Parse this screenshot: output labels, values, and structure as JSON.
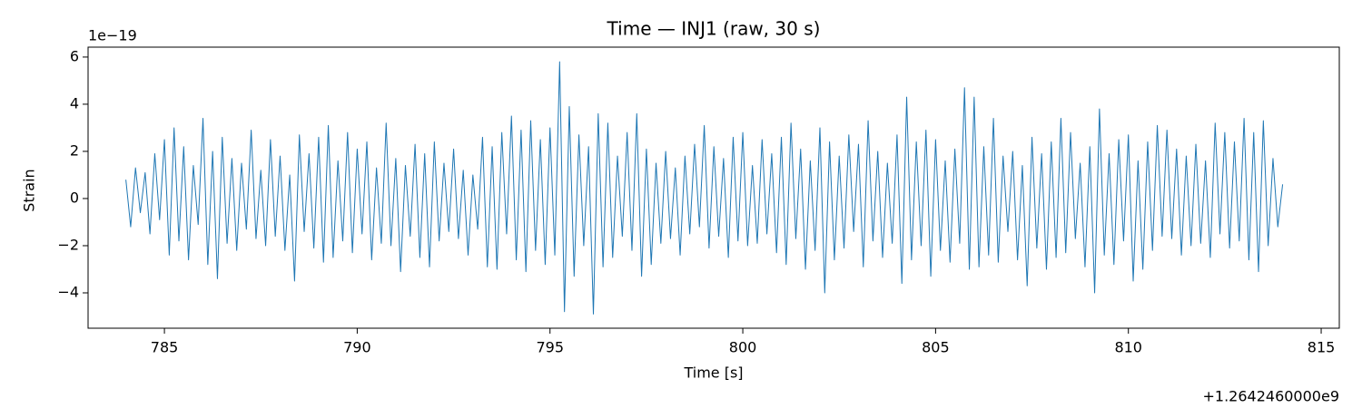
{
  "chart_data": {
    "type": "line",
    "title": "Time — INJ1 (raw, 30 s)",
    "xlabel": "Time [s]",
    "ylabel": "Strain",
    "y_offset_label": "1e−19",
    "x_offset_label": "+1.2642460000e9",
    "xlim": [
      783.02,
      815.47
    ],
    "ylim": [
      -5.5,
      6.42
    ],
    "xticks": [
      785,
      790,
      795,
      800,
      805,
      810,
      815
    ],
    "yticks": [
      {
        "value": -4,
        "label": "−4"
      },
      {
        "value": -2,
        "label": "−2"
      },
      0,
      2,
      4,
      6
    ],
    "grid": false,
    "x": [
      784,
      784.125,
      784.25,
      784.375,
      784.5,
      784.625,
      784.75,
      784.875,
      785,
      785.125,
      785.25,
      785.375,
      785.5,
      785.625,
      785.75,
      785.875,
      786,
      786.125,
      786.25,
      786.375,
      786.5,
      786.625,
      786.75,
      786.875,
      787,
      787.125,
      787.25,
      787.375,
      787.5,
      787.625,
      787.75,
      787.875,
      788,
      788.125,
      788.25,
      788.375,
      788.5,
      788.625,
      788.75,
      788.875,
      789,
      789.125,
      789.25,
      789.375,
      789.5,
      789.625,
      789.75,
      789.875,
      790,
      790.125,
      790.25,
      790.375,
      790.5,
      790.625,
      790.75,
      790.875,
      791,
      791.125,
      791.25,
      791.375,
      791.5,
      791.625,
      791.75,
      791.875,
      792,
      792.125,
      792.25,
      792.375,
      792.5,
      792.625,
      792.75,
      792.875,
      793,
      793.125,
      793.25,
      793.375,
      793.5,
      793.625,
      793.75,
      793.875,
      794,
      794.125,
      794.25,
      794.375,
      794.5,
      794.625,
      794.75,
      794.875,
      795,
      795.125,
      795.25,
      795.375,
      795.5,
      795.625,
      795.75,
      795.875,
      796,
      796.125,
      796.25,
      796.375,
      796.5,
      796.625,
      796.75,
      796.875,
      797,
      797.125,
      797.25,
      797.375,
      797.5,
      797.625,
      797.75,
      797.875,
      798,
      798.125,
      798.25,
      798.375,
      798.5,
      798.625,
      798.75,
      798.875,
      799,
      799.125,
      799.25,
      799.375,
      799.5,
      799.625,
      799.75,
      799.875,
      800,
      800.125,
      800.25,
      800.375,
      800.5,
      800.625,
      800.75,
      800.875,
      801,
      801.125,
      801.25,
      801.375,
      801.5,
      801.625,
      801.75,
      801.875,
      802,
      802.125,
      802.25,
      802.375,
      802.5,
      802.625,
      802.75,
      802.875,
      803,
      803.125,
      803.25,
      803.375,
      803.5,
      803.625,
      803.75,
      803.875,
      804,
      804.125,
      804.25,
      804.375,
      804.5,
      804.625,
      804.75,
      804.875,
      805,
      805.125,
      805.25,
      805.375,
      805.5,
      805.625,
      805.75,
      805.875,
      806,
      806.125,
      806.25,
      806.375,
      806.5,
      806.625,
      806.75,
      806.875,
      807,
      807.125,
      807.25,
      807.375,
      807.5,
      807.625,
      807.75,
      807.875,
      808,
      808.125,
      808.25,
      808.375,
      808.5,
      808.625,
      808.75,
      808.875,
      809,
      809.125,
      809.25,
      809.375,
      809.5,
      809.625,
      809.75,
      809.875,
      810,
      810.125,
      810.25,
      810.375,
      810.5,
      810.625,
      810.75,
      810.875,
      811,
      811.125,
      811.25,
      811.375,
      811.5,
      811.625,
      811.75,
      811.875,
      812,
      812.125,
      812.25,
      812.375,
      812.5,
      812.625,
      812.75,
      812.875,
      813,
      813.125,
      813.25,
      813.375,
      813.5,
      813.625,
      813.75,
      813.875,
      814
    ],
    "series": [
      {
        "name": "INJ1",
        "color": "#1f77b4",
        "values": [
          0.8,
          -1.2,
          1.3,
          -0.6,
          1.1,
          -1.5,
          1.9,
          -0.9,
          2.5,
          -2.4,
          3.0,
          -1.8,
          2.2,
          -2.6,
          1.4,
          -1.1,
          3.4,
          -2.8,
          2.0,
          -3.4,
          2.6,
          -1.9,
          1.7,
          -2.2,
          1.5,
          -1.3,
          2.9,
          -1.7,
          1.2,
          -2.0,
          2.5,
          -1.6,
          1.8,
          -2.2,
          1.0,
          -3.5,
          2.7,
          -1.4,
          1.9,
          -2.1,
          2.6,
          -2.7,
          3.1,
          -2.5,
          1.6,
          -1.8,
          2.8,
          -2.3,
          2.1,
          -1.5,
          2.4,
          -2.6,
          1.3,
          -1.9,
          3.2,
          -2.0,
          1.7,
          -3.1,
          1.4,
          -1.6,
          2.3,
          -2.5,
          1.9,
          -2.9,
          2.4,
          -1.8,
          1.5,
          -1.4,
          2.1,
          -1.7,
          1.2,
          -2.4,
          1.0,
          -1.3,
          2.6,
          -2.9,
          2.2,
          -3.0,
          2.8,
          -1.5,
          3.5,
          -2.6,
          2.9,
          -3.1,
          3.3,
          -2.2,
          2.5,
          -2.8,
          3.0,
          -2.4,
          5.8,
          -4.8,
          3.9,
          -3.3,
          2.7,
          -2.0,
          2.2,
          -4.9,
          3.6,
          -2.9,
          3.2,
          -2.5,
          1.8,
          -1.6,
          2.8,
          -2.2,
          3.6,
          -3.3,
          2.1,
          -2.8,
          1.5,
          -1.9,
          2.0,
          -1.7,
          1.3,
          -2.4,
          1.8,
          -1.5,
          2.3,
          -1.2,
          3.1,
          -2.1,
          2.2,
          -1.6,
          1.7,
          -2.5,
          2.6,
          -1.8,
          2.8,
          -2.0,
          1.4,
          -1.9,
          2.5,
          -1.5,
          1.9,
          -2.3,
          2.6,
          -2.8,
          3.2,
          -1.7,
          2.1,
          -3.0,
          1.6,
          -2.2,
          3.0,
          -4.0,
          2.4,
          -2.6,
          1.8,
          -2.1,
          2.7,
          -1.4,
          2.3,
          -2.9,
          3.3,
          -1.8,
          2.0,
          -2.5,
          1.5,
          -1.9,
          2.7,
          -3.6,
          4.3,
          -2.6,
          2.4,
          -2.0,
          2.9,
          -3.3,
          2.5,
          -2.2,
          1.6,
          -2.7,
          2.1,
          -1.9,
          4.7,
          -3.0,
          4.3,
          -2.9,
          2.2,
          -2.4,
          3.4,
          -2.7,
          1.8,
          -1.4,
          2.0,
          -2.6,
          1.4,
          -3.7,
          2.6,
          -2.1,
          1.9,
          -3.0,
          2.4,
          -2.5,
          3.4,
          -2.3,
          2.8,
          -1.7,
          1.5,
          -2.9,
          2.2,
          -4.0,
          3.8,
          -2.4,
          1.9,
          -2.8,
          2.5,
          -1.8,
          2.7,
          -3.5,
          1.6,
          -3.0,
          2.4,
          -2.2,
          3.1,
          -1.6,
          2.9,
          -1.7,
          2.1,
          -2.4,
          1.8,
          -2.0,
          2.3,
          -1.9,
          1.6,
          -2.5,
          3.2,
          -1.5,
          2.8,
          -2.1,
          2.4,
          -1.8,
          3.4,
          -2.6,
          2.8,
          -3.1,
          3.3,
          -2.0,
          1.7,
          -1.2,
          0.6
        ]
      }
    ]
  }
}
